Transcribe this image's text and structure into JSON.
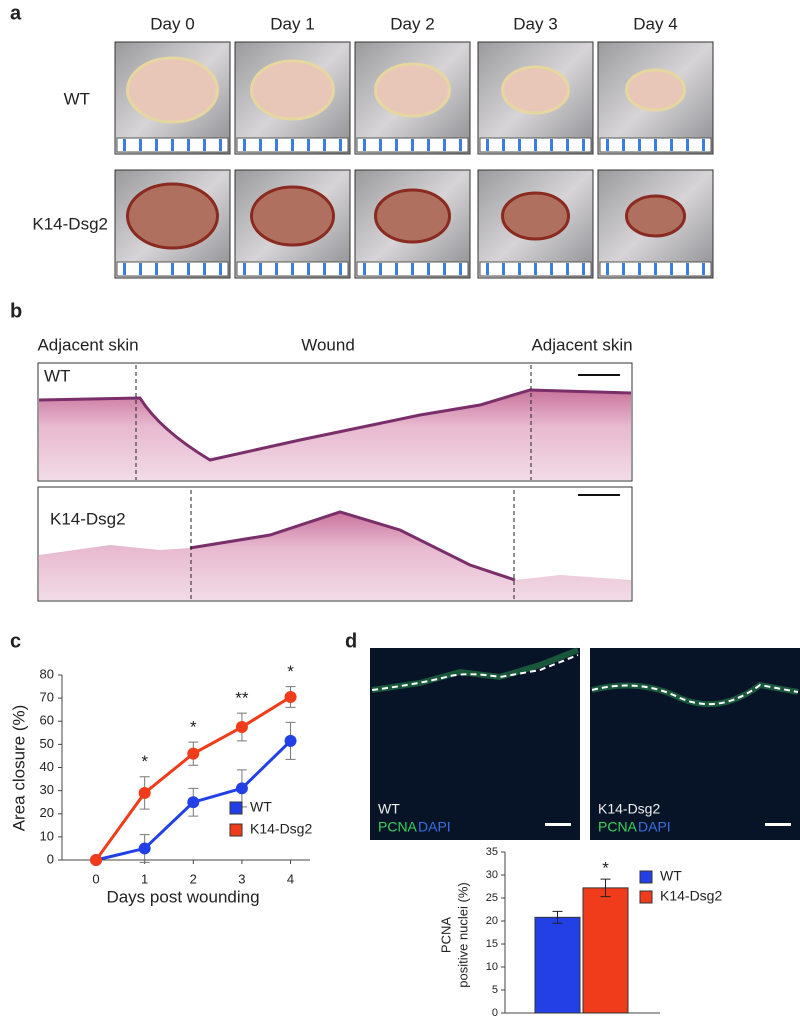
{
  "panel_a": {
    "label": "a",
    "days": [
      "Day 0",
      "Day 1",
      "Day 2",
      "Day 3",
      "Day 4"
    ],
    "rows": [
      "WT",
      "K14-Dsg2"
    ]
  },
  "panel_b": {
    "label": "b",
    "left": "Adjacent skin",
    "center": "Wound",
    "right": "Adjacent skin",
    "sections": [
      "WT",
      "K14-Dsg2"
    ]
  },
  "panel_c": {
    "label": "c"
  },
  "panel_d": {
    "label": "d",
    "images": [
      {
        "genotype": "WT",
        "stain1": "PCNA",
        "stain2": "DAPI"
      },
      {
        "genotype": "K14-Dsg2",
        "stain1": "PCNA",
        "stain2": "DAPI"
      }
    ]
  },
  "chart_data": [
    {
      "type": "line",
      "xlabel": "Days post wounding",
      "ylabel": "Area closure (%)",
      "x": [
        0,
        1,
        2,
        3,
        4
      ],
      "xlim": [
        -0.7,
        4.4
      ],
      "xticks": [
        0,
        1,
        2,
        3,
        4
      ],
      "ylim": [
        0,
        80
      ],
      "yticks": [
        0,
        10,
        20,
        30,
        40,
        50,
        60,
        70,
        80
      ],
      "series": [
        {
          "name": "WT",
          "color": "#2340e6",
          "values": [
            0,
            5,
            25,
            31,
            51.5
          ],
          "errors": [
            0,
            6,
            6,
            8,
            8
          ]
        },
        {
          "name": "K14-Dsg2",
          "color": "#f03c1a",
          "values": [
            0,
            29,
            46,
            57.5,
            70.5
          ],
          "errors": [
            0,
            7,
            5,
            6,
            4.5
          ]
        }
      ],
      "annotations": [
        {
          "x": 1,
          "text": "*"
        },
        {
          "x": 2,
          "text": "*"
        },
        {
          "x": 3,
          "text": "**"
        },
        {
          "x": 4,
          "text": "*"
        }
      ]
    },
    {
      "type": "bar",
      "ylabel": [
        "PCNA",
        "positive nuclei (%)"
      ],
      "ylim": [
        0,
        35
      ],
      "yticks": [
        0,
        5,
        10,
        15,
        20,
        25,
        30,
        35
      ],
      "series": [
        {
          "name": "WT",
          "color": "#2340e6",
          "values": [
            20.8
          ],
          "errors": [
            1.3
          ]
        },
        {
          "name": "K14-Dsg2",
          "color": "#f03c1a",
          "values": [
            27.2
          ],
          "errors": [
            1.9
          ],
          "annotation": "*"
        }
      ]
    }
  ]
}
